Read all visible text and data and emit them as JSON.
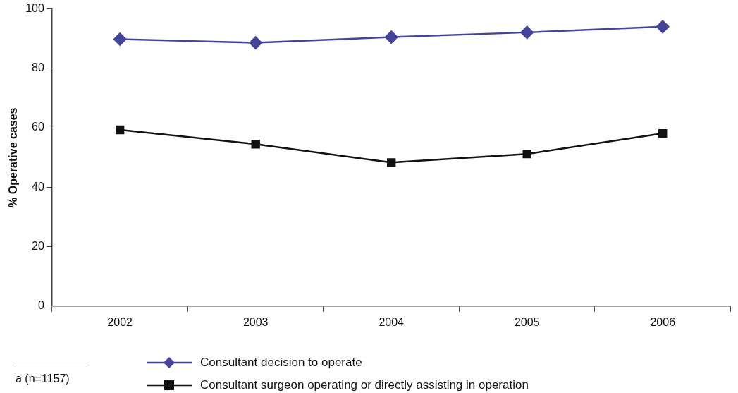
{
  "chart_data": {
    "type": "line",
    "ylabel": "% Operative cases",
    "categories": [
      "2002",
      "2003",
      "2004",
      "2005",
      "2006"
    ],
    "series": [
      {
        "name": "Consultant decision to operate",
        "color": "#44449a",
        "marker": "diamond",
        "values": [
          89.8,
          88.6,
          90.5,
          92.1,
          94.0
        ]
      },
      {
        "name": "Consultant surgeon operating or directly assisting in operation",
        "color": "#111111",
        "marker": "square",
        "values": [
          59.3,
          54.5,
          48.3,
          51.2,
          58.1
        ]
      }
    ],
    "ylim": [
      0,
      100
    ],
    "yticks": [
      0,
      20,
      40,
      60,
      80,
      100
    ],
    "grid": false,
    "legend": "bottom left",
    "annotations": [
      "a (n=1157)"
    ]
  }
}
